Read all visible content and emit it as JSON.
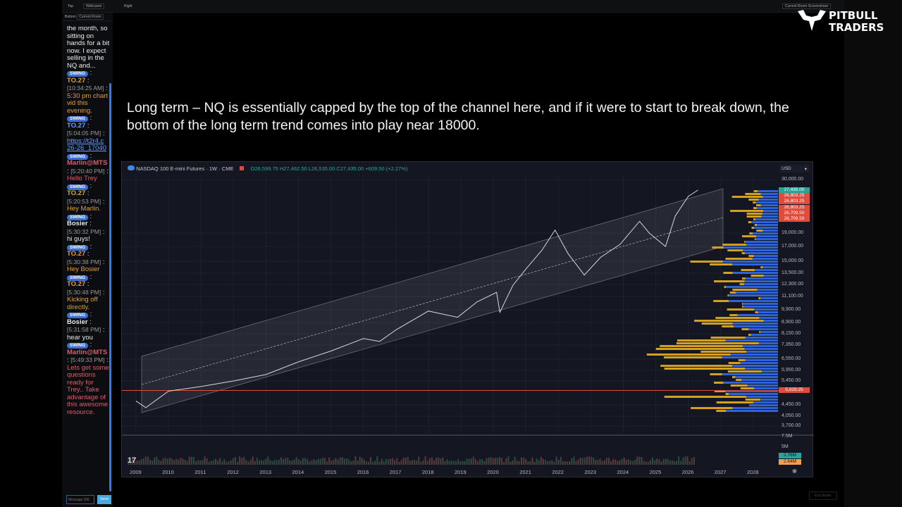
{
  "topbar": {
    "top_label": "Top",
    "top_select": "Webcams",
    "bottom_label": "Bottom",
    "bottom_select": "Current Room",
    "right_label": "Right",
    "share_select": "Current Room Screenshare"
  },
  "chat": {
    "intro": "the month, so sitting on hands for a bit now. I expect selling in the NQ and...",
    "messages": [
      {
        "badge": "SWING",
        "user": "TO.27",
        "time": "[10:34:25 AM]",
        "text": "5:30 pm chart vid this evening.",
        "color": "#e0a030"
      },
      {
        "badge": "SWING",
        "user": "TO.27",
        "time": "[5:04:05 PM]",
        "text": "https://t2r4.c 26-26_17040",
        "color": "#6aa0ff",
        "link": true
      },
      {
        "badge": "SWING",
        "user": "Marlin@MTS",
        "time": "[5:20:40 PM]",
        "text": "Hello Trey",
        "color": "#e05a6a"
      },
      {
        "badge": "SWING",
        "user": "TO.27",
        "time": "[5:20:53 PM]",
        "text": "Hey Marlin.",
        "color": "#e0a030"
      },
      {
        "badge": "SWING",
        "user": "Bosier",
        "time": "[5:30:32 PM]",
        "text": "hi guys!",
        "color": "#e8e8e8"
      },
      {
        "badge": "SWING",
        "user": "TO.27",
        "time": "[5:30:38 PM]",
        "text": "Hey Bosier",
        "color": "#e0a030"
      },
      {
        "badge": "SWING",
        "user": "TO.27",
        "time": "[5:30:48 PM]",
        "text": "Kicking off directly.",
        "color": "#e0a030"
      },
      {
        "badge": "SWING",
        "user": "Bosier",
        "time": "[5:31:58 PM]",
        "text": "hear you",
        "color": "#e8e8e8"
      },
      {
        "badge": "SWING",
        "user": "Marlin@MTS",
        "time": "[5:49:33 PM]",
        "text": "Lets get some questions ready for Trey.. Take advantage of this awesome resource.",
        "color": "#e05a6a"
      }
    ],
    "input_placeholder": "Message SW",
    "send_label": "Send"
  },
  "headline": "Long term – NQ is essentially capped by the top of the channel here, and if it were to start to break down, the bottom of the long term trend comes into play near 18000.",
  "logo": {
    "line1": "PITBULL",
    "line2": "TRADERS"
  },
  "exit_label": "Exit Studio",
  "chart_data": {
    "type": "line",
    "symbol": "NASDAQ 100 E-mini Futures · 1W · CME",
    "ohlc": "O26,599.75 H27,462.50 L26,535.00 C27,435.00 +609.50 (+2.27%)",
    "currency": "USD",
    "y_ticks": [
      "30,000.00",
      "19,000.00",
      "17,000.00",
      "15,000.00",
      "13,500.00",
      "12,300.00",
      "11,100.00",
      "9,900.00",
      "8,900.00",
      "8,150.00",
      "7,350.00",
      "6,550.00",
      "5,950.00",
      "5,450.00",
      "4,450.00",
      "4,050.00",
      "3,700.00"
    ],
    "y_tick_values": [
      30000,
      19000,
      17000,
      15000,
      13500,
      12300,
      11100,
      9900,
      8900,
      8150,
      7350,
      6550,
      5950,
      5450,
      4450,
      4050,
      3700
    ],
    "price_tags": [
      {
        "label": "27,435.00",
        "color": "#26a69a"
      },
      {
        "label": "26,803.25",
        "color": "#e04b3c"
      },
      {
        "label": "26,803.25",
        "color": "#e04b3c"
      },
      {
        "label": "26,803.25",
        "color": "#e04b3c"
      },
      {
        "label": "26,709.50",
        "color": "#e04b3c"
      },
      {
        "label": "26,709.50",
        "color": "#e04b3c"
      }
    ],
    "horizontal_line": {
      "label": "5,029.25",
      "value": 5029.25,
      "color": "#e04b3c"
    },
    "volume_ticks": [
      "7.5M",
      "5M"
    ],
    "volume_tags": [
      {
        "label": "2.76M",
        "color": "#26a69a"
      },
      {
        "label": "2.64M",
        "color": "#f0a050"
      }
    ],
    "x_ticks": [
      "2009",
      "2010",
      "2011",
      "2012",
      "2013",
      "2014",
      "2015",
      "2016",
      "2017",
      "2018",
      "2019",
      "2020",
      "2021",
      "2022",
      "2023",
      "2024",
      "2025",
      "2026",
      "2027",
      "2028"
    ],
    "series": [
      {
        "x": [
          2009.0,
          2009.3,
          2010.0,
          2011.0,
          2012.0,
          2013.0,
          2014.0,
          2015.0,
          2016.0,
          2016.5,
          2017.0,
          2018.0,
          2018.9,
          2019.5,
          2020.1,
          2020.2,
          2020.6,
          2021.0,
          2021.5,
          2021.9,
          2022.3,
          2022.8,
          2023.3,
          2023.9,
          2024.5,
          2024.8,
          2025.3,
          2025.6,
          2026.0,
          2026.3
        ],
        "y": [
          4600,
          4350,
          5000,
          5200,
          5450,
          5750,
          6400,
          7000,
          7800,
          7600,
          8400,
          9800,
          9300,
          10600,
          11500,
          9700,
          12200,
          14000,
          16500,
          19500,
          16000,
          13300,
          15500,
          17300,
          21000,
          19000,
          17000,
          22000,
          26000,
          27435
        ]
      }
    ],
    "colors": {
      "price": "#d8d8d8",
      "channel_fill": "#ffffff",
      "volume_profile_up": "#2f63d8",
      "volume_profile_down": "#d4a020"
    },
    "log_scale": true,
    "grid": true
  }
}
